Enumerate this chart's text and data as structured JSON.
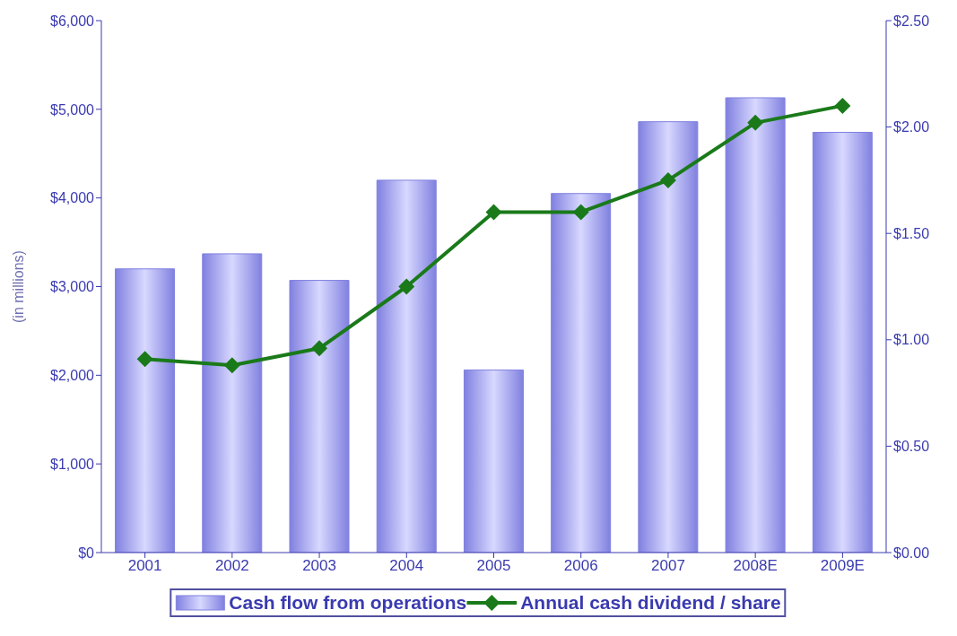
{
  "chart_data": {
    "type": "bar",
    "ylabel": "(in millions)",
    "categories": [
      "2001",
      "2002",
      "2003",
      "2004",
      "2005",
      "2006",
      "2007",
      "2008E",
      "2009E"
    ],
    "series": [
      {
        "name": "Cash flow from operations",
        "color": "#8080e0",
        "values": [
          3200,
          3370,
          3070,
          4200,
          2060,
          4050,
          4860,
          5130,
          4740
        ]
      },
      {
        "name": "Annual cash dividend / share",
        "type": "line",
        "axis": "y2",
        "color": "#1a7a1a",
        "marker": "diamond",
        "values": [
          0.91,
          0.88,
          0.96,
          1.25,
          1.6,
          1.6,
          1.75,
          2.02,
          2.1
        ]
      }
    ],
    "ylim": [
      0,
      6000
    ],
    "yticks": [
      {
        "value": 0,
        "label": "$0"
      },
      {
        "value": 1000,
        "label": "$1,000"
      },
      {
        "value": 2000,
        "label": "$2,000"
      },
      {
        "value": 3000,
        "label": "$3,000"
      },
      {
        "value": 4000,
        "label": "$4,000"
      },
      {
        "value": 5000,
        "label": "$5,000"
      },
      {
        "value": 6000,
        "label": "$6,000"
      }
    ],
    "y2lim": [
      0,
      2.5
    ],
    "y2ticks": [
      {
        "value": 0,
        "label": "$0.00"
      },
      {
        "value": 0.5,
        "label": "$0.50"
      },
      {
        "value": 1,
        "label": "$1.00"
      },
      {
        "value": 1.5,
        "label": "$1.50"
      },
      {
        "value": 2,
        "label": "$2.00"
      },
      {
        "value": 2.5,
        "label": "$2.50"
      }
    ],
    "grid": false,
    "legend": "bottom"
  }
}
